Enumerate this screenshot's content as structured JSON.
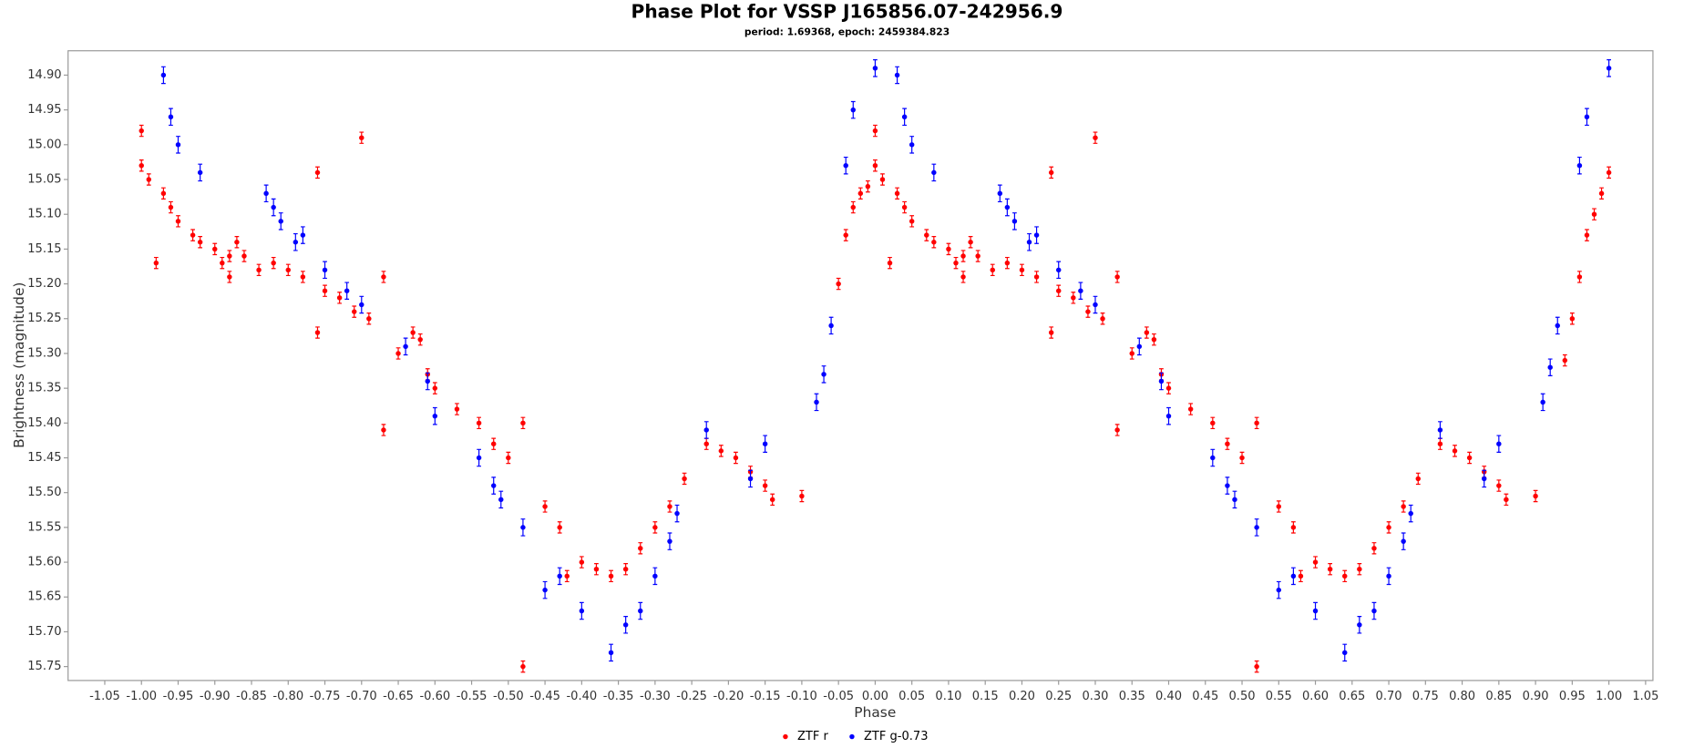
{
  "chart_data": {
    "type": "scatter",
    "title": "Phase Plot for VSSP J165856.07-242956.9",
    "subtitle": "period: 1.69368, epoch: 2459384.823",
    "x_label": "Phase",
    "y_label": "Brightness (magnitude)",
    "xlim": [
      -1.1,
      1.06
    ],
    "ylim": [
      15.77,
      14.865
    ],
    "xticks": [
      -1.05,
      {
        "value": -1.0,
        "label": "-1.00"
      },
      -0.95,
      {
        "value": -0.9,
        "label": "-0.90"
      },
      -0.85,
      {
        "value": -0.8,
        "label": "-0.80"
      },
      -0.75,
      {
        "value": -0.7,
        "label": "-0.70"
      },
      -0.65,
      {
        "value": -0.6,
        "label": "-0.60"
      },
      -0.55,
      {
        "value": -0.5,
        "label": "-0.50"
      },
      -0.45,
      {
        "value": -0.4,
        "label": "-0.40"
      },
      -0.35,
      {
        "value": -0.3,
        "label": "-0.30"
      },
      -0.25,
      {
        "value": -0.2,
        "label": "-0.20"
      },
      -0.15,
      {
        "value": -0.1,
        "label": "-0.10"
      },
      -0.05,
      {
        "value": 0,
        "label": "0.00"
      },
      0.05,
      {
        "value": 0.1,
        "label": "0.10"
      },
      0.15,
      {
        "value": 0.2,
        "label": "0.20"
      },
      0.25,
      {
        "value": 0.3,
        "label": "0.30"
      },
      0.35,
      {
        "value": 0.4,
        "label": "0.40"
      },
      0.45,
      {
        "value": 0.5,
        "label": "0.50"
      },
      0.55,
      {
        "value": 0.6,
        "label": "0.60"
      },
      0.65,
      {
        "value": 0.7,
        "label": "0.70"
      },
      0.75,
      {
        "value": 0.8,
        "label": "0.80"
      },
      0.85,
      {
        "value": 0.9,
        "label": "0.90"
      },
      0.95,
      {
        "value": 1.0,
        "label": "1.00"
      },
      1.05
    ],
    "yticks": [
      {
        "value": 14.9,
        "label": "14.90"
      },
      14.95,
      {
        "value": 15.0,
        "label": "15.00"
      },
      15.05,
      {
        "value": 15.1,
        "label": "15.10"
      },
      15.15,
      {
        "value": 15.2,
        "label": "15.20"
      },
      15.25,
      {
        "value": 15.3,
        "label": "15.30"
      },
      15.35,
      {
        "value": 15.4,
        "label": "15.40"
      },
      15.45,
      {
        "value": 15.5,
        "label": "15.50"
      },
      15.55,
      {
        "value": 15.6,
        "label": "15.60"
      },
      15.65,
      {
        "value": 15.7,
        "label": "15.70"
      },
      15.75
    ],
    "grid": false,
    "legend": "bottom",
    "series": [
      {
        "name": "ZTF r",
        "color": "#ff0000",
        "error": 0.008,
        "x": [
          -1.0,
          -1.0,
          -0.99,
          -0.98,
          -0.97,
          -0.96,
          -0.95,
          -0.93,
          -0.92,
          -0.9,
          -0.89,
          -0.88,
          -0.88,
          -0.87,
          -0.86,
          -0.84,
          -0.82,
          -0.8,
          -0.78,
          -0.76,
          -0.76,
          -0.75,
          -0.73,
          -0.71,
          -0.7,
          -0.69,
          -0.67,
          -0.67,
          -0.65,
          -0.63,
          -0.62,
          -0.61,
          -0.6,
          -0.57,
          -0.54,
          -0.52,
          -0.5,
          -0.48,
          -0.48,
          -0.45,
          -0.43,
          -0.42,
          -0.4,
          -0.38,
          -0.36,
          -0.34,
          -0.32,
          -0.3,
          -0.28,
          -0.26,
          -0.23,
          -0.21,
          -0.19,
          -0.17,
          -0.15,
          -0.14,
          -0.1,
          0.0,
          0.0,
          0.01,
          0.02,
          0.03,
          0.04,
          0.05,
          0.07,
          0.08,
          0.1,
          0.11,
          0.12,
          0.12,
          0.13,
          0.14,
          0.16,
          0.18,
          0.2,
          0.22,
          0.24,
          0.24,
          0.25,
          0.27,
          0.29,
          0.3,
          0.31,
          0.33,
          0.33,
          0.35,
          0.37,
          0.38,
          0.39,
          0.4,
          0.43,
          0.46,
          0.48,
          0.5,
          0.52,
          0.52,
          0.55,
          0.57,
          0.58,
          0.6,
          0.62,
          0.64,
          0.66,
          0.68,
          0.7,
          0.72,
          0.74,
          0.77,
          0.79,
          0.81,
          0.83,
          0.85,
          0.86,
          0.9,
          -0.05,
          -0.04,
          -0.03,
          -0.02,
          -0.01,
          0.94,
          0.95,
          0.96,
          0.97,
          0.98,
          0.99,
          1.0
        ],
        "values": [
          14.98,
          15.03,
          15.05,
          15.17,
          15.07,
          15.09,
          15.11,
          15.13,
          15.14,
          15.15,
          15.17,
          15.16,
          15.19,
          15.14,
          15.16,
          15.18,
          15.17,
          15.18,
          15.19,
          15.04,
          15.27,
          15.21,
          15.22,
          15.24,
          14.99,
          15.25,
          15.19,
          15.41,
          15.3,
          15.27,
          15.28,
          15.33,
          15.35,
          15.38,
          15.4,
          15.43,
          15.45,
          15.4,
          15.75,
          15.52,
          15.55,
          15.62,
          15.6,
          15.61,
          15.62,
          15.61,
          15.58,
          15.55,
          15.52,
          15.48,
          15.43,
          15.44,
          15.45,
          15.47,
          15.49,
          15.51,
          15.505,
          14.98,
          15.03,
          15.05,
          15.17,
          15.07,
          15.09,
          15.11,
          15.13,
          15.14,
          15.15,
          15.17,
          15.16,
          15.19,
          15.14,
          15.16,
          15.18,
          15.17,
          15.18,
          15.19,
          15.04,
          15.27,
          15.21,
          15.22,
          15.24,
          14.99,
          15.25,
          15.19,
          15.41,
          15.3,
          15.27,
          15.28,
          15.33,
          15.35,
          15.38,
          15.4,
          15.43,
          15.45,
          15.4,
          15.75,
          15.52,
          15.55,
          15.62,
          15.6,
          15.61,
          15.62,
          15.61,
          15.58,
          15.55,
          15.52,
          15.48,
          15.43,
          15.44,
          15.45,
          15.47,
          15.49,
          15.51,
          15.505,
          15.2,
          15.13,
          15.09,
          15.07,
          15.06,
          15.31,
          15.25,
          15.19,
          15.13,
          15.1,
          15.07,
          15.04
        ]
      },
      {
        "name": "ZTF g-0.73",
        "color": "#0000ff",
        "error": 0.012,
        "x": [
          -0.97,
          -0.96,
          -0.95,
          -0.92,
          -0.83,
          -0.82,
          -0.81,
          -0.79,
          -0.78,
          -0.75,
          -0.72,
          -0.7,
          -0.64,
          -0.61,
          -0.6,
          -0.54,
          -0.52,
          -0.51,
          -0.48,
          -0.45,
          -0.43,
          -0.4,
          -0.36,
          -0.34,
          -0.32,
          -0.3,
          -0.28,
          -0.27,
          -0.23,
          -0.17,
          -0.15,
          0.0,
          -0.04,
          -0.03,
          -0.07,
          -0.06,
          -0.08,
          0.03,
          0.04,
          0.05,
          0.08,
          0.17,
          0.18,
          0.19,
          0.21,
          0.22,
          0.25,
          0.28,
          0.3,
          0.36,
          0.39,
          0.4,
          0.46,
          0.48,
          0.49,
          0.52,
          0.55,
          0.57,
          0.6,
          0.64,
          0.66,
          0.68,
          0.7,
          0.72,
          0.73,
          0.77,
          0.83,
          0.85,
          0.91,
          0.92,
          0.93,
          0.96,
          0.97,
          1.0
        ],
        "values": [
          14.9,
          14.96,
          15.0,
          15.04,
          15.07,
          15.09,
          15.11,
          15.14,
          15.13,
          15.18,
          15.21,
          15.23,
          15.29,
          15.34,
          15.39,
          15.45,
          15.49,
          15.51,
          15.55,
          15.64,
          15.62,
          15.67,
          15.73,
          15.69,
          15.67,
          15.62,
          15.57,
          15.53,
          15.41,
          15.48,
          15.43,
          14.89,
          15.03,
          14.95,
          15.33,
          15.26,
          15.37,
          14.9,
          14.96,
          15.0,
          15.04,
          15.07,
          15.09,
          15.11,
          15.14,
          15.13,
          15.18,
          15.21,
          15.23,
          15.29,
          15.34,
          15.39,
          15.45,
          15.49,
          15.51,
          15.55,
          15.64,
          15.62,
          15.67,
          15.73,
          15.69,
          15.67,
          15.62,
          15.57,
          15.53,
          15.41,
          15.48,
          15.43,
          15.37,
          15.32,
          15.26,
          15.03,
          14.96,
          14.89
        ]
      }
    ]
  }
}
